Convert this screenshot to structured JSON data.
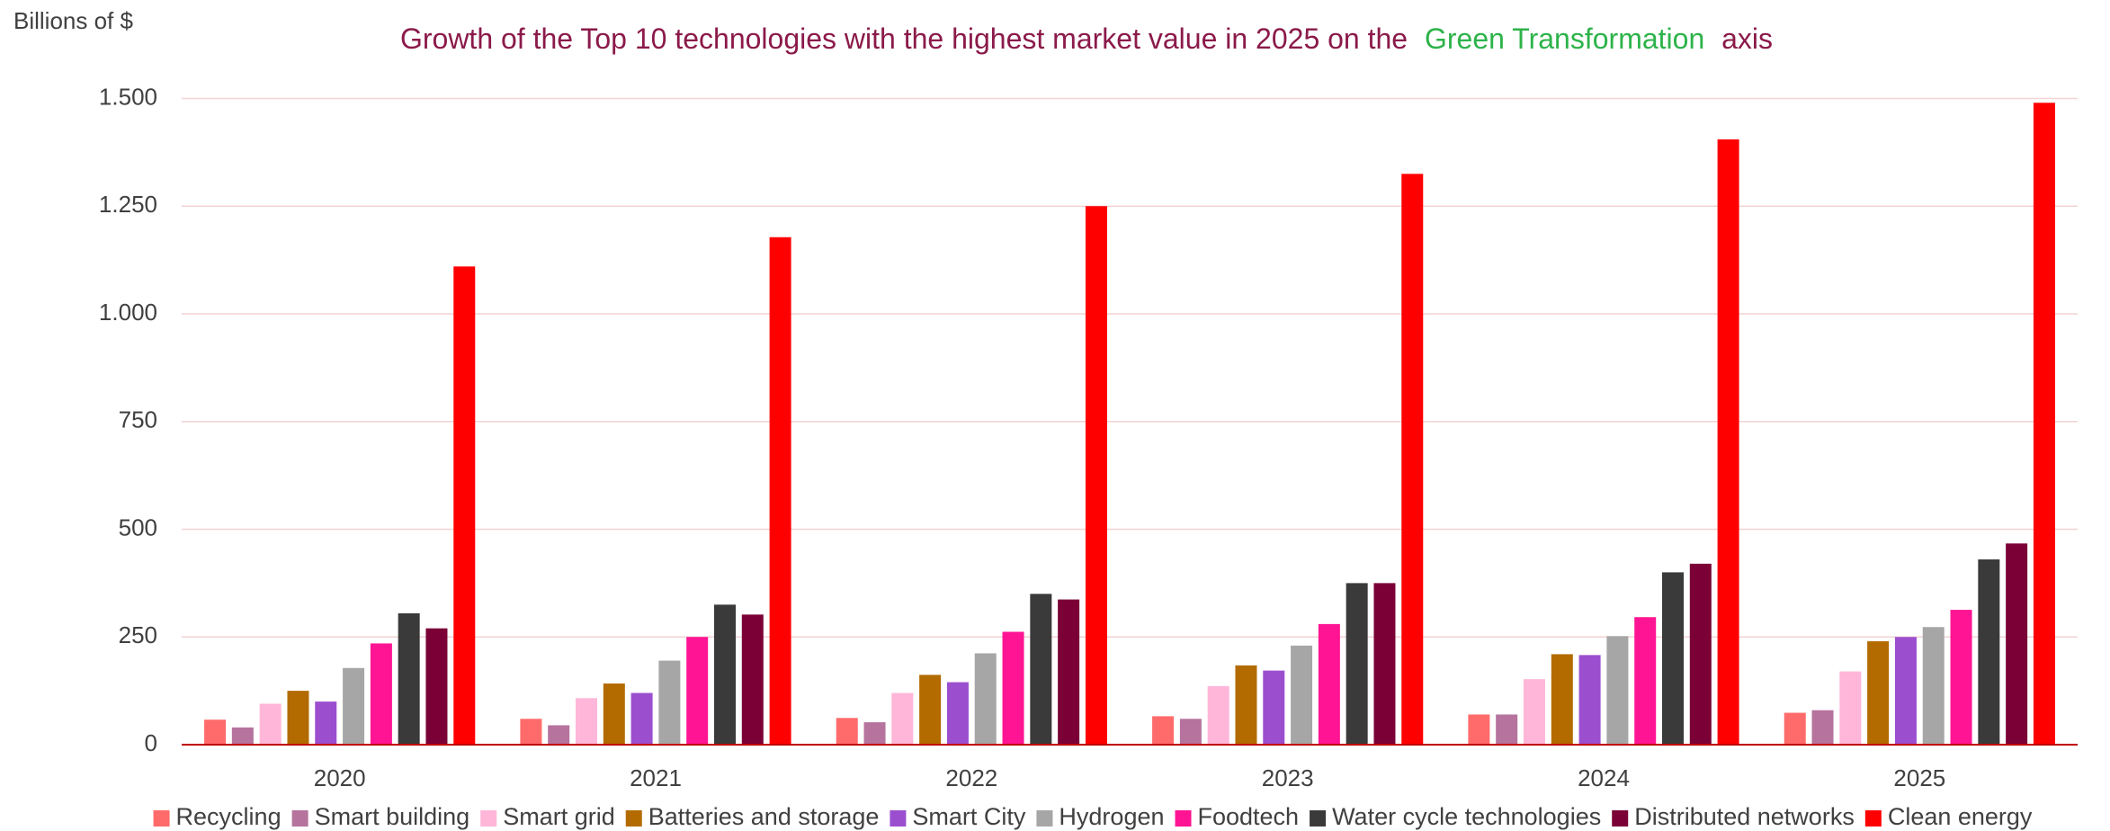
{
  "chart_data": {
    "type": "bar",
    "title": [
      "Growth of the Top 10 technologies with the highest market value in 2025 on the",
      "Green Transformation",
      "axis"
    ],
    "title_colors": [
      "#8b1a4a",
      "#2db34a",
      "#8b1a4a"
    ],
    "y_label": "Billions of $",
    "categories": [
      "2020",
      "2021",
      "2022",
      "2023",
      "2024",
      "2025"
    ],
    "series": [
      {
        "name": "Recycling",
        "color": "#ff6b6b",
        "values": [
          58,
          60,
          62,
          66,
          70,
          74
        ]
      },
      {
        "name": "Smart building",
        "color": "#b5739d",
        "values": [
          40,
          45,
          52,
          60,
          70,
          80
        ]
      },
      {
        "name": "Smart grid",
        "color": "#ffb6d9",
        "values": [
          95,
          108,
          120,
          136,
          152,
          170
        ]
      },
      {
        "name": "Batteries and storage",
        "color": "#b36b00",
        "values": [
          125,
          142,
          162,
          184,
          210,
          240
        ]
      },
      {
        "name": "Smart City",
        "color": "#9b4fcf",
        "values": [
          100,
          120,
          145,
          172,
          208,
          250
        ]
      },
      {
        "name": "Hydrogen",
        "color": "#a6a6a6",
        "values": [
          178,
          195,
          212,
          230,
          252,
          273
        ]
      },
      {
        "name": "Foodtech",
        "color": "#ff1493",
        "values": [
          235,
          250,
          262,
          280,
          296,
          313
        ]
      },
      {
        "name": "Water cycle technologies",
        "color": "#3a3a3a",
        "values": [
          305,
          325,
          350,
          375,
          400,
          430
        ]
      },
      {
        "name": "Distributed networks",
        "color": "#7a0036",
        "values": [
          270,
          302,
          337,
          375,
          420,
          467
        ]
      },
      {
        "name": "Clean energy",
        "color": "#ff0000",
        "values": [
          1110,
          1178,
          1250,
          1325,
          1405,
          1490
        ]
      }
    ],
    "ylim": [
      0,
      1500
    ],
    "yticks": [
      0,
      250,
      500,
      750,
      {
        "value": 1000,
        "label": "1.000"
      },
      {
        "value": 1250,
        "label": "1.250"
      },
      {
        "value": 1500,
        "label": "1.500"
      }
    ],
    "grid": true,
    "legend": "bottom"
  }
}
